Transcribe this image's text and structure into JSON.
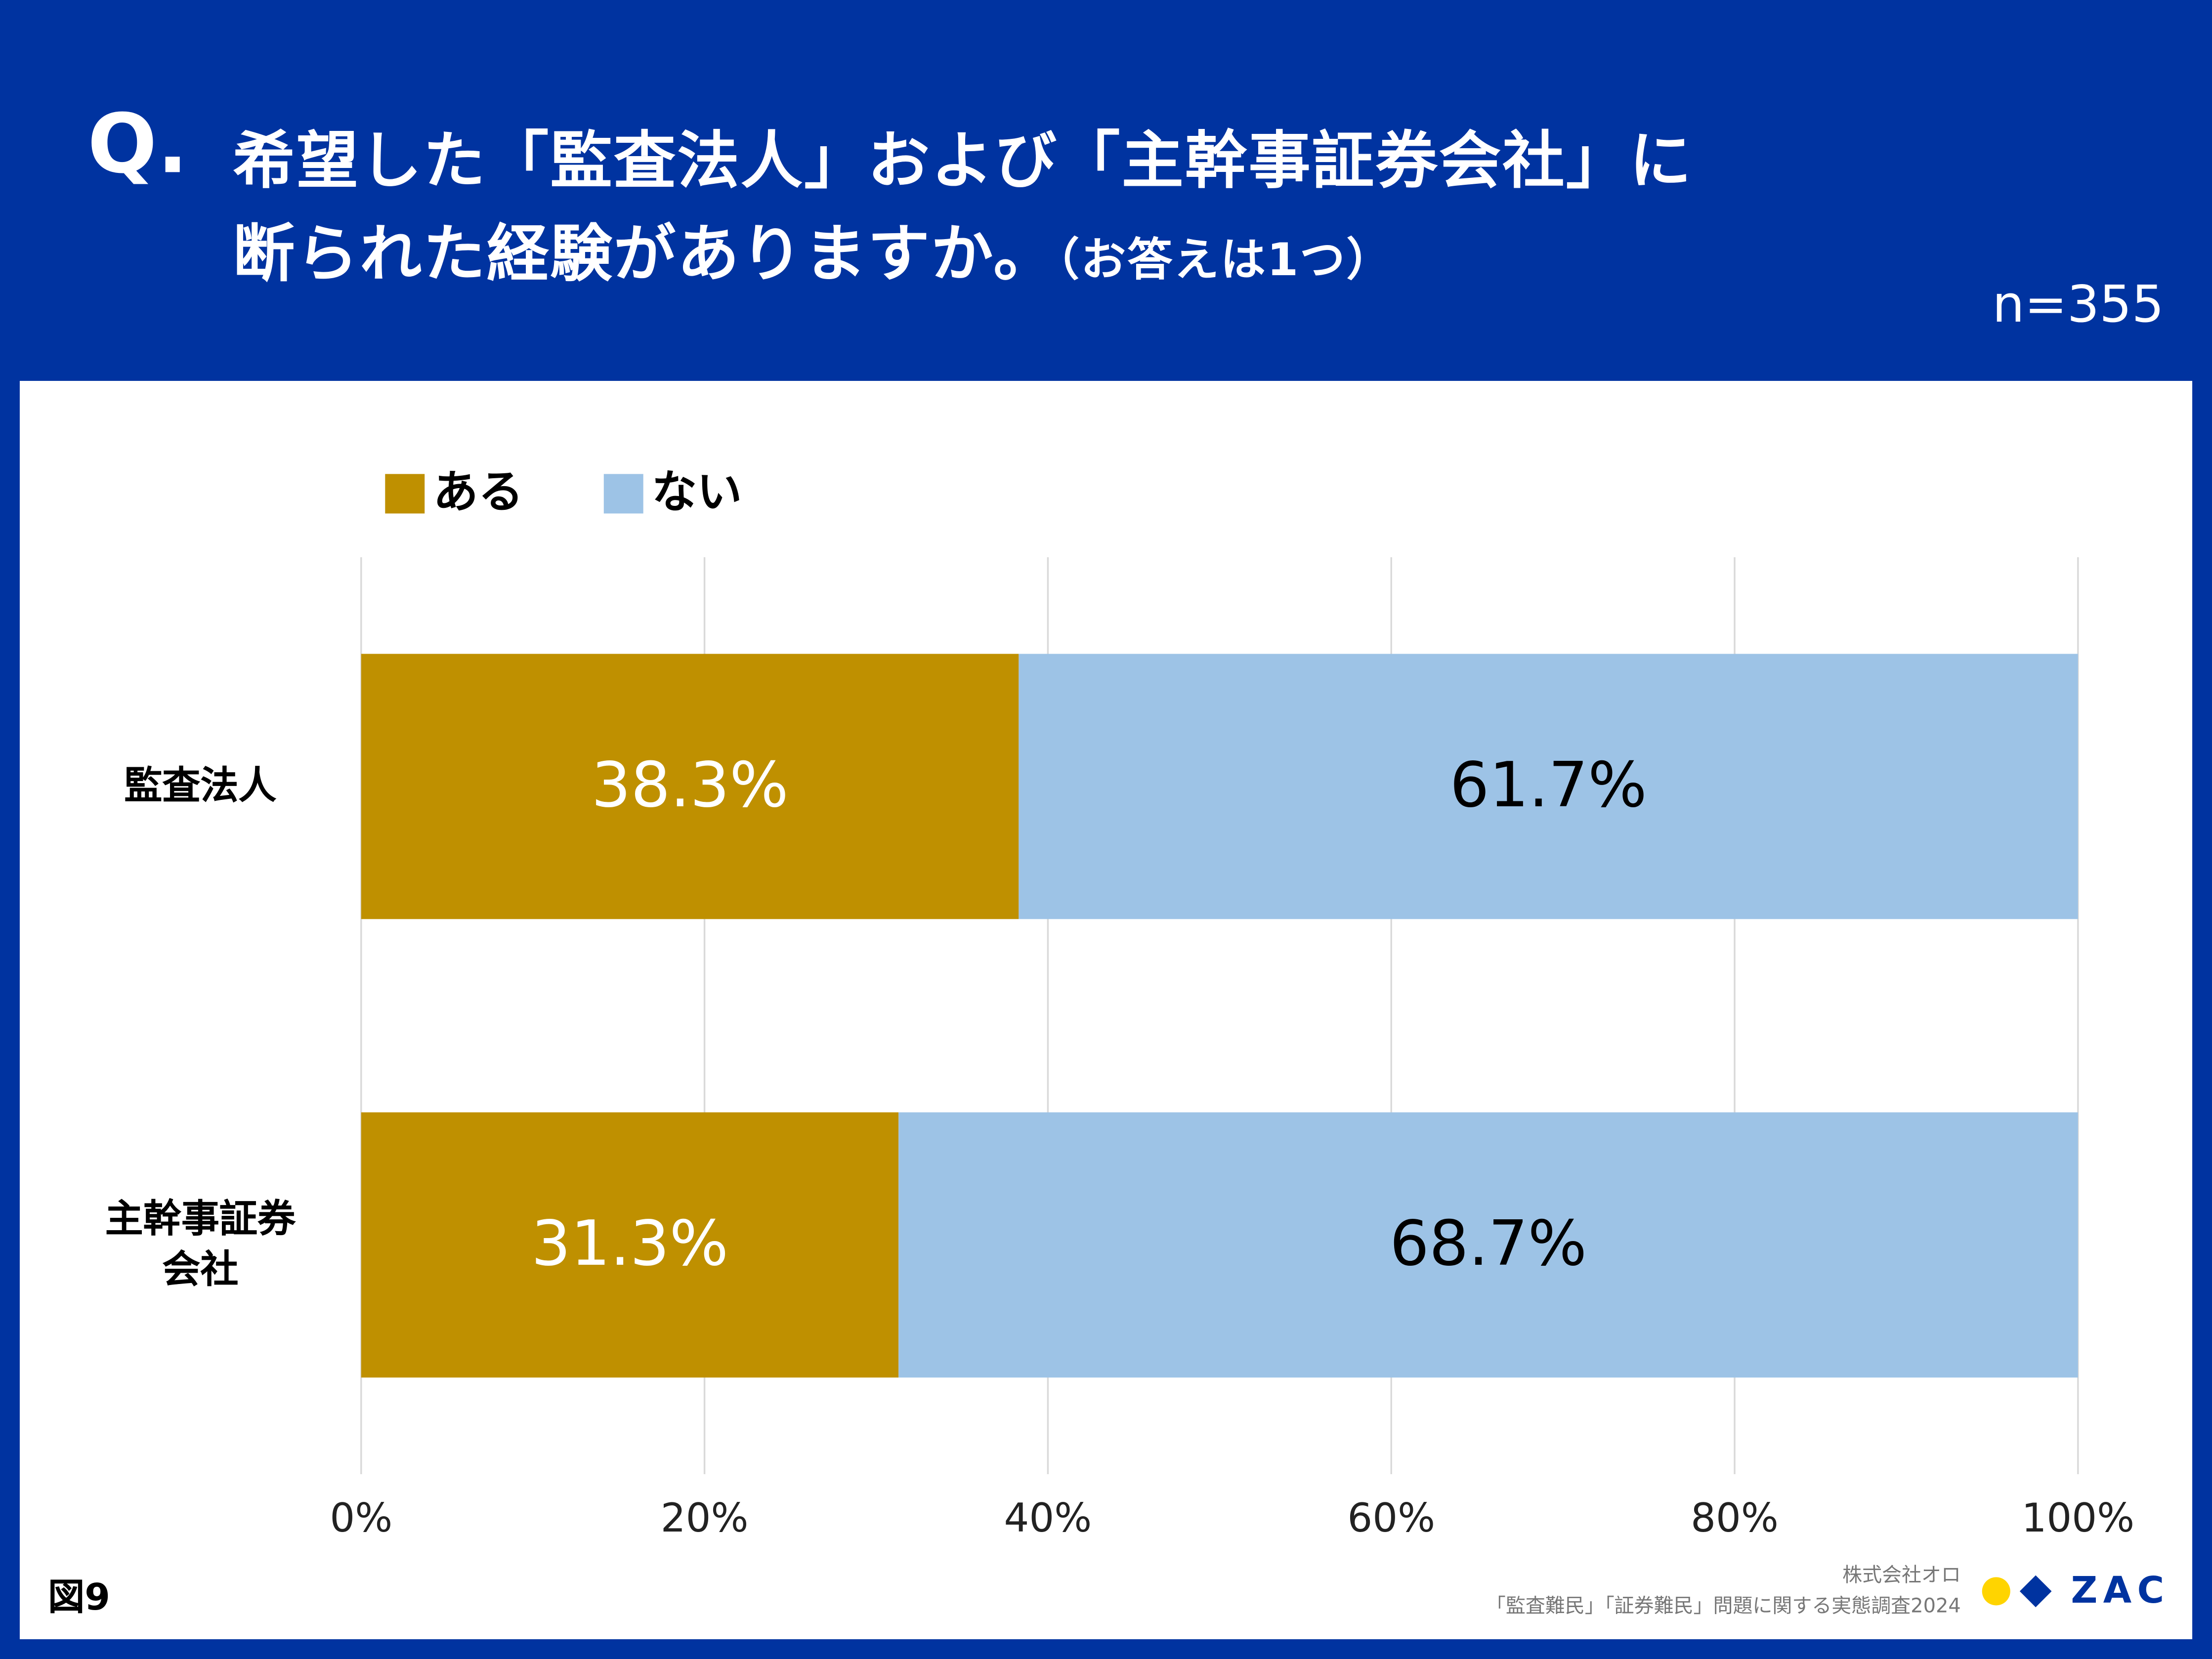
{
  "header": {
    "q": "Q.",
    "title_line1": "希望した「監査法人」および「主幹事証券会社」に",
    "title_line2": "断られた経験がありますか。",
    "note": "（お答えは1つ）",
    "n": "n=355"
  },
  "chart_data": {
    "type": "stacked_bar_h",
    "categories": [
      "監査法人",
      "主幹事証券会社"
    ],
    "series": [
      {
        "name": "ある",
        "color": "#bf9000",
        "label_color": "#ffffff",
        "values": [
          38.3,
          31.3
        ],
        "value_labels": [
          "38.3%",
          "31.3%"
        ]
      },
      {
        "name": "ない",
        "color": "#9dc3e6",
        "label_color": "#000000",
        "values": [
          61.7,
          68.7
        ],
        "value_labels": [
          "61.7%",
          "68.7%"
        ]
      }
    ],
    "xlim": [
      0,
      100
    ],
    "xticks": [
      {
        "value": 0,
        "label": "0%"
      },
      {
        "value": 20,
        "label": "20%"
      },
      {
        "value": 40,
        "label": "40%"
      },
      {
        "value": 60,
        "label": "60%"
      },
      {
        "value": 80,
        "label": "80%"
      },
      {
        "value": 100,
        "label": "100%"
      }
    ],
    "grid": true
  },
  "footer": {
    "figure": "図9",
    "company": "株式会社オロ",
    "survey": "「監査難民」「証券難民」問題に関する実態調査2024",
    "logo": "ZAC"
  }
}
